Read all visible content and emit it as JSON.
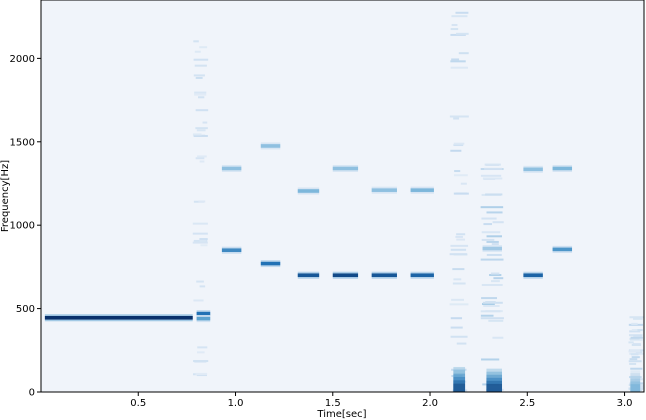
{
  "chart_data": {
    "type": "heatmap",
    "title": "",
    "xlabel": "Time[sec]",
    "ylabel": "Frequency[Hz]",
    "xlim": [
      0.0,
      3.1
    ],
    "ylim": [
      0,
      2350
    ],
    "x_ticks": [
      0.5,
      1.0,
      1.5,
      2.0,
      2.5,
      3.0
    ],
    "x_tick_labels": [
      "0.5",
      "1.0",
      "1.5",
      "2.0",
      "2.5",
      "3.0"
    ],
    "y_ticks": [
      0,
      500,
      1000,
      1500,
      2000
    ],
    "y_tick_labels": [
      "0",
      "500",
      "1000",
      "1500",
      "2000"
    ],
    "colormap": "Blues",
    "background_color": "#f0f4fa",
    "grid": false,
    "tones": [
      {
        "t_start": 0.02,
        "t_end": 0.78,
        "freq": 445,
        "intensity": 1.0
      },
      {
        "t_start": 0.8,
        "t_end": 0.87,
        "freq": 470,
        "intensity": 0.75
      },
      {
        "t_start": 0.8,
        "t_end": 0.87,
        "freq": 440,
        "intensity": 0.55
      },
      {
        "t_start": 0.93,
        "t_end": 1.03,
        "freq": 850,
        "intensity": 0.65
      },
      {
        "t_start": 0.93,
        "t_end": 1.03,
        "freq": 1340,
        "intensity": 0.4
      },
      {
        "t_start": 1.13,
        "t_end": 1.23,
        "freq": 770,
        "intensity": 0.75
      },
      {
        "t_start": 1.13,
        "t_end": 1.23,
        "freq": 1475,
        "intensity": 0.4
      },
      {
        "t_start": 1.32,
        "t_end": 1.43,
        "freq": 700,
        "intensity": 0.85
      },
      {
        "t_start": 1.32,
        "t_end": 1.43,
        "freq": 1205,
        "intensity": 0.45
      },
      {
        "t_start": 1.5,
        "t_end": 1.63,
        "freq": 700,
        "intensity": 0.9
      },
      {
        "t_start": 1.5,
        "t_end": 1.63,
        "freq": 1340,
        "intensity": 0.4
      },
      {
        "t_start": 1.7,
        "t_end": 1.83,
        "freq": 700,
        "intensity": 0.85
      },
      {
        "t_start": 1.7,
        "t_end": 1.83,
        "freq": 1210,
        "intensity": 0.4
      },
      {
        "t_start": 1.9,
        "t_end": 2.02,
        "freq": 700,
        "intensity": 0.8
      },
      {
        "t_start": 1.9,
        "t_end": 2.02,
        "freq": 1210,
        "intensity": 0.45
      },
      {
        "t_start": 2.27,
        "t_end": 2.37,
        "freq": 860,
        "intensity": 0.35
      },
      {
        "t_start": 2.48,
        "t_end": 2.58,
        "freq": 700,
        "intensity": 0.8
      },
      {
        "t_start": 2.48,
        "t_end": 2.58,
        "freq": 1335,
        "intensity": 0.4
      },
      {
        "t_start": 2.63,
        "t_end": 2.73,
        "freq": 855,
        "intensity": 0.6
      },
      {
        "t_start": 2.63,
        "t_end": 2.73,
        "freq": 1340,
        "intensity": 0.45
      }
    ],
    "broadband_events": [
      {
        "t_start": 0.78,
        "t_end": 0.86,
        "f_max": 2150,
        "intensity": 0.15
      },
      {
        "t_start": 2.1,
        "t_end": 2.2,
        "f_max": 2300,
        "intensity": 0.18
      },
      {
        "t_start": 2.26,
        "t_end": 2.38,
        "f_max": 1400,
        "intensity": 0.22
      },
      {
        "t_start": 3.02,
        "t_end": 3.1,
        "f_max": 450,
        "intensity": 0.18
      }
    ],
    "low_frequency_bursts": [
      {
        "t_start": 2.12,
        "t_end": 2.18,
        "f_max": 120,
        "intensity": 0.95
      },
      {
        "t_start": 2.29,
        "t_end": 2.37,
        "f_max": 110,
        "intensity": 0.95
      },
      {
        "t_start": 3.03,
        "t_end": 3.08,
        "f_max": 100,
        "intensity": 0.5
      }
    ]
  }
}
